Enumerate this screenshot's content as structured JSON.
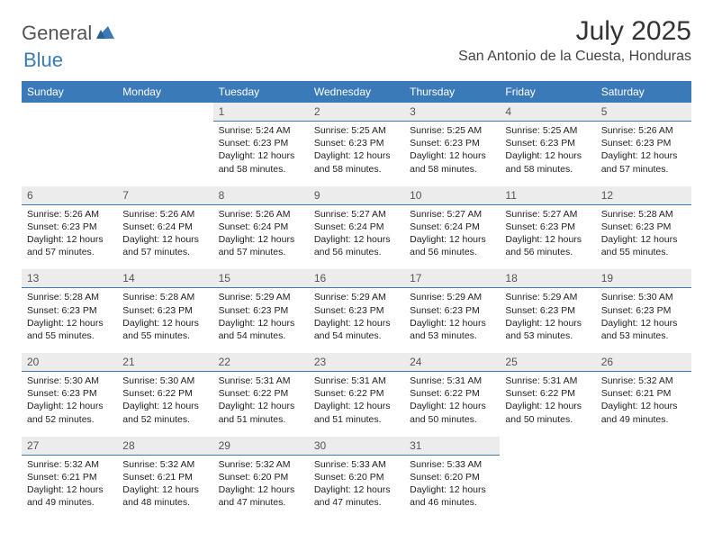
{
  "brand": {
    "part1": "General",
    "part2": "Blue"
  },
  "title": "July 2025",
  "location": "San Antonio de la Cuesta, Honduras",
  "colors": {
    "header_bg": "#3a7ab8",
    "header_text": "#ffffff",
    "daynum_bg": "#ececec",
    "daynum_border": "#3a7ab8",
    "body_bg": "#ffffff",
    "text": "#222222",
    "brand_gray": "#555555",
    "brand_blue": "#3a7ab8"
  },
  "fonts": {
    "title_size": 30,
    "location_size": 16,
    "dow_size": 12,
    "daynum_size": 12,
    "cell_size": 10.5
  },
  "days_of_week": [
    "Sunday",
    "Monday",
    "Tuesday",
    "Wednesday",
    "Thursday",
    "Friday",
    "Saturday"
  ],
  "weeks": [
    [
      null,
      null,
      {
        "n": "1",
        "sr": "5:24 AM",
        "ss": "6:23 PM",
        "dl": "12 hours and 58 minutes."
      },
      {
        "n": "2",
        "sr": "5:25 AM",
        "ss": "6:23 PM",
        "dl": "12 hours and 58 minutes."
      },
      {
        "n": "3",
        "sr": "5:25 AM",
        "ss": "6:23 PM",
        "dl": "12 hours and 58 minutes."
      },
      {
        "n": "4",
        "sr": "5:25 AM",
        "ss": "6:23 PM",
        "dl": "12 hours and 58 minutes."
      },
      {
        "n": "5",
        "sr": "5:26 AM",
        "ss": "6:23 PM",
        "dl": "12 hours and 57 minutes."
      }
    ],
    [
      {
        "n": "6",
        "sr": "5:26 AM",
        "ss": "6:23 PM",
        "dl": "12 hours and 57 minutes."
      },
      {
        "n": "7",
        "sr": "5:26 AM",
        "ss": "6:24 PM",
        "dl": "12 hours and 57 minutes."
      },
      {
        "n": "8",
        "sr": "5:26 AM",
        "ss": "6:24 PM",
        "dl": "12 hours and 57 minutes."
      },
      {
        "n": "9",
        "sr": "5:27 AM",
        "ss": "6:24 PM",
        "dl": "12 hours and 56 minutes."
      },
      {
        "n": "10",
        "sr": "5:27 AM",
        "ss": "6:24 PM",
        "dl": "12 hours and 56 minutes."
      },
      {
        "n": "11",
        "sr": "5:27 AM",
        "ss": "6:23 PM",
        "dl": "12 hours and 56 minutes."
      },
      {
        "n": "12",
        "sr": "5:28 AM",
        "ss": "6:23 PM",
        "dl": "12 hours and 55 minutes."
      }
    ],
    [
      {
        "n": "13",
        "sr": "5:28 AM",
        "ss": "6:23 PM",
        "dl": "12 hours and 55 minutes."
      },
      {
        "n": "14",
        "sr": "5:28 AM",
        "ss": "6:23 PM",
        "dl": "12 hours and 55 minutes."
      },
      {
        "n": "15",
        "sr": "5:29 AM",
        "ss": "6:23 PM",
        "dl": "12 hours and 54 minutes."
      },
      {
        "n": "16",
        "sr": "5:29 AM",
        "ss": "6:23 PM",
        "dl": "12 hours and 54 minutes."
      },
      {
        "n": "17",
        "sr": "5:29 AM",
        "ss": "6:23 PM",
        "dl": "12 hours and 53 minutes."
      },
      {
        "n": "18",
        "sr": "5:29 AM",
        "ss": "6:23 PM",
        "dl": "12 hours and 53 minutes."
      },
      {
        "n": "19",
        "sr": "5:30 AM",
        "ss": "6:23 PM",
        "dl": "12 hours and 53 minutes."
      }
    ],
    [
      {
        "n": "20",
        "sr": "5:30 AM",
        "ss": "6:23 PM",
        "dl": "12 hours and 52 minutes."
      },
      {
        "n": "21",
        "sr": "5:30 AM",
        "ss": "6:22 PM",
        "dl": "12 hours and 52 minutes."
      },
      {
        "n": "22",
        "sr": "5:31 AM",
        "ss": "6:22 PM",
        "dl": "12 hours and 51 minutes."
      },
      {
        "n": "23",
        "sr": "5:31 AM",
        "ss": "6:22 PM",
        "dl": "12 hours and 51 minutes."
      },
      {
        "n": "24",
        "sr": "5:31 AM",
        "ss": "6:22 PM",
        "dl": "12 hours and 50 minutes."
      },
      {
        "n": "25",
        "sr": "5:31 AM",
        "ss": "6:22 PM",
        "dl": "12 hours and 50 minutes."
      },
      {
        "n": "26",
        "sr": "5:32 AM",
        "ss": "6:21 PM",
        "dl": "12 hours and 49 minutes."
      }
    ],
    [
      {
        "n": "27",
        "sr": "5:32 AM",
        "ss": "6:21 PM",
        "dl": "12 hours and 49 minutes."
      },
      {
        "n": "28",
        "sr": "5:32 AM",
        "ss": "6:21 PM",
        "dl": "12 hours and 48 minutes."
      },
      {
        "n": "29",
        "sr": "5:32 AM",
        "ss": "6:20 PM",
        "dl": "12 hours and 47 minutes."
      },
      {
        "n": "30",
        "sr": "5:33 AM",
        "ss": "6:20 PM",
        "dl": "12 hours and 47 minutes."
      },
      {
        "n": "31",
        "sr": "5:33 AM",
        "ss": "6:20 PM",
        "dl": "12 hours and 46 minutes."
      },
      null,
      null
    ]
  ],
  "labels": {
    "sunrise_prefix": "Sunrise: ",
    "sunset_prefix": "Sunset: ",
    "daylight_prefix": "Daylight: "
  }
}
